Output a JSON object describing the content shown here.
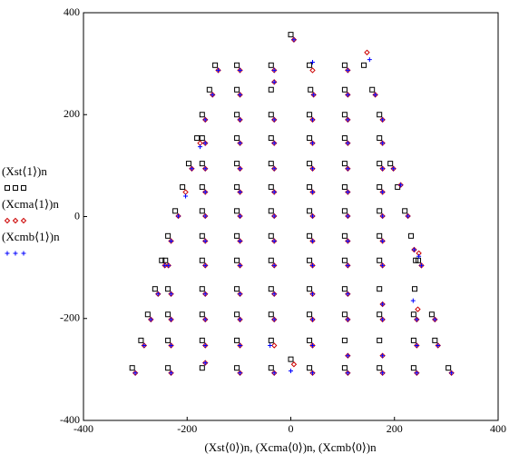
{
  "chart_data": {
    "type": "scatter",
    "x_label": "(Xst⟨0⟩)n, (Xcma⟨0⟩)n, (Xcmb⟨0⟩)n",
    "xlim": [
      -400,
      400
    ],
    "xticks": [
      -400,
      -200,
      0,
      200,
      400
    ],
    "ylim": [
      -400,
      400
    ],
    "yticks": [
      -400,
      -200,
      0,
      200,
      400
    ],
    "series": [
      {
        "name": "(Xst⟨1⟩)n",
        "color": "#000000",
        "marker": "square",
        "x": [
          -146,
          -104,
          -38,
          36,
          104,
          141,
          -157,
          -104,
          -38,
          38,
          104,
          157,
          -171,
          -104,
          -38,
          36,
          104,
          171,
          -181,
          -171,
          -104,
          -38,
          36,
          104,
          171,
          -197,
          -171,
          -104,
          -38,
          36,
          104,
          171,
          192,
          -209,
          -171,
          -104,
          -38,
          36,
          104,
          171,
          206,
          -223,
          -171,
          -104,
          -38,
          36,
          104,
          171,
          220,
          -237,
          -171,
          -104,
          -38,
          36,
          104,
          171,
          232,
          -249,
          -242,
          -171,
          -104,
          -38,
          36,
          104,
          171,
          241,
          246,
          -262,
          -237,
          -171,
          -104,
          -38,
          36,
          104,
          171,
          239,
          -276,
          -237,
          -171,
          -104,
          -38,
          36,
          104,
          171,
          237,
          272,
          -289,
          -237,
          -171,
          -104,
          -38,
          36,
          104,
          171,
          237,
          278,
          -306,
          -237,
          -171,
          -104,
          -38,
          36,
          104,
          171,
          237,
          304,
          0,
          0
        ],
        "values": [
          297,
          297,
          297,
          297,
          297,
          297,
          249,
          249,
          249,
          249,
          249,
          249,
          200,
          200,
          200,
          200,
          200,
          200,
          154,
          154,
          154,
          154,
          154,
          154,
          154,
          104,
          104,
          104,
          104,
          104,
          104,
          104,
          104,
          58,
          58,
          58,
          58,
          58,
          58,
          58,
          58,
          11,
          11,
          11,
          11,
          11,
          11,
          11,
          11,
          -38,
          -38,
          -38,
          -38,
          -38,
          -38,
          -38,
          -38,
          -86,
          -86,
          -86,
          -86,
          -86,
          -86,
          -86,
          -86,
          -86,
          -86,
          -142,
          -142,
          -142,
          -142,
          -142,
          -142,
          -142,
          -142,
          -142,
          -192,
          -192,
          -192,
          -192,
          -192,
          -192,
          -192,
          -192,
          -192,
          -192,
          -243,
          -243,
          -243,
          -243,
          -243,
          -243,
          -243,
          -243,
          -243,
          -243,
          -297,
          -297,
          -297,
          -297,
          -297,
          -297,
          -297,
          -297,
          -297,
          -297,
          357,
          -280
        ]
      },
      {
        "name": "(Xcma⟨1⟩)n",
        "color": "#cc0000",
        "marker": "diamond",
        "x": [
          -140,
          -98,
          -32,
          42,
          110,
          147,
          -151,
          -98,
          -32,
          44,
          110,
          163,
          -165,
          -98,
          -32,
          42,
          110,
          177,
          -175,
          -165,
          -98,
          -32,
          42,
          110,
          177,
          -191,
          -165,
          -98,
          -32,
          42,
          110,
          177,
          198,
          -203,
          -165,
          -98,
          -32,
          42,
          110,
          177,
          212,
          -217,
          -165,
          -98,
          -32,
          42,
          110,
          177,
          226,
          -231,
          -165,
          -98,
          -32,
          42,
          110,
          177,
          238,
          -243,
          -236,
          -165,
          -98,
          -32,
          42,
          110,
          177,
          247,
          252,
          -256,
          -231,
          -165,
          -98,
          -32,
          42,
          110,
          177,
          245,
          -270,
          -231,
          -165,
          -98,
          -32,
          42,
          110,
          177,
          243,
          278,
          -283,
          -231,
          -165,
          -98,
          -32,
          42,
          110,
          177,
          243,
          284,
          -300,
          -231,
          -165,
          -98,
          -32,
          42,
          110,
          177,
          243,
          310,
          6,
          6
        ],
        "values": [
          287,
          287,
          287,
          287,
          287,
          322,
          239,
          239,
          264,
          239,
          239,
          239,
          190,
          190,
          190,
          190,
          190,
          190,
          144,
          144,
          144,
          144,
          144,
          144,
          144,
          94,
          94,
          94,
          94,
          94,
          94,
          94,
          94,
          48,
          48,
          48,
          48,
          48,
          48,
          48,
          62,
          1,
          1,
          1,
          1,
          1,
          1,
          1,
          1,
          -48,
          -48,
          -48,
          -48,
          -48,
          -48,
          -48,
          -65,
          -96,
          -96,
          -96,
          -96,
          -96,
          -96,
          -96,
          -96,
          -72,
          -96,
          -152,
          -152,
          -152,
          -152,
          -152,
          -152,
          -152,
          -172,
          -182,
          -202,
          -202,
          -202,
          -202,
          -202,
          -202,
          -202,
          -202,
          -202,
          -202,
          -253,
          -253,
          -253,
          -253,
          -253,
          -253,
          -273,
          -273,
          -253,
          -253,
          -307,
          -307,
          -287,
          -307,
          -307,
          -307,
          -307,
          -307,
          -307,
          -307,
          347,
          -290
        ]
      },
      {
        "name": "(Xcmb⟨1⟩)n",
        "color": "#0000ff",
        "marker": "plus",
        "x": [
          -140,
          -98,
          -32,
          42,
          110,
          152,
          -151,
          -98,
          -32,
          44,
          110,
          163,
          -165,
          -98,
          -32,
          42,
          110,
          177,
          -175,
          -165,
          -98,
          -32,
          42,
          110,
          177,
          -191,
          -165,
          -98,
          -32,
          42,
          110,
          177,
          198,
          -203,
          -165,
          -98,
          -32,
          42,
          110,
          177,
          212,
          -217,
          -165,
          -98,
          -32,
          42,
          110,
          177,
          226,
          -231,
          -165,
          -98,
          -32,
          42,
          110,
          177,
          238,
          -243,
          -236,
          -165,
          -98,
          -32,
          42,
          110,
          177,
          247,
          252,
          -256,
          -231,
          -165,
          -98,
          -32,
          42,
          110,
          177,
          236,
          -270,
          -231,
          -165,
          -98,
          -32,
          42,
          110,
          177,
          243,
          278,
          -283,
          -231,
          -165,
          -98,
          -40,
          42,
          110,
          177,
          243,
          284,
          -300,
          -231,
          -165,
          -98,
          -32,
          42,
          110,
          177,
          243,
          310,
          6,
          0
        ],
        "values": [
          287,
          287,
          287,
          303,
          287,
          308,
          239,
          239,
          264,
          239,
          239,
          239,
          190,
          190,
          190,
          190,
          190,
          190,
          137,
          144,
          144,
          144,
          144,
          144,
          144,
          94,
          94,
          94,
          94,
          94,
          94,
          94,
          94,
          40,
          48,
          48,
          48,
          48,
          48,
          48,
          62,
          1,
          1,
          1,
          1,
          1,
          1,
          1,
          1,
          -48,
          -48,
          -48,
          -48,
          -48,
          -48,
          -48,
          -65,
          -96,
          -96,
          -96,
          -96,
          -96,
          -96,
          -96,
          -96,
          -78,
          -96,
          -152,
          -152,
          -152,
          -152,
          -152,
          -152,
          -152,
          -172,
          -165,
          -202,
          -202,
          -202,
          -202,
          -202,
          -202,
          -202,
          -202,
          -202,
          -202,
          -253,
          -253,
          -253,
          -253,
          -253,
          -253,
          -273,
          -273,
          -253,
          -253,
          -307,
          -307,
          -287,
          -307,
          -307,
          -307,
          -307,
          -307,
          -307,
          -307,
          347,
          -303
        ]
      }
    ]
  }
}
